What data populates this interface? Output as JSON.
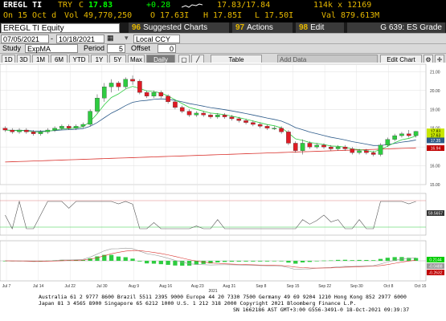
{
  "ticker": {
    "symbol": "EREGL TI",
    "currency": "TRY",
    "c_label": "C",
    "last_price": "17.83",
    "change": "+0.28",
    "bid_ask": "17.83/17.84",
    "size": "114k x 12169",
    "on_label": "On",
    "date_label": "15 Oct d",
    "vol_label": "Vol",
    "volume": "49,770,250",
    "o_label": "O",
    "open": "17.63I",
    "h_label": "H",
    "high": "17.85I",
    "l_label": "L",
    "low": "17.50I",
    "val_label": "Val",
    "value": "879.613M"
  },
  "toolbar": {
    "security": "EREGL TI Equity",
    "btn_suggested": {
      "num": "96",
      "label": "Suggested Charts"
    },
    "btn_actions": {
      "num": "97",
      "label": "Actions"
    },
    "btn_edit": {
      "num": "98",
      "label": "Edit"
    },
    "chart_id": "G 639: ES Grade"
  },
  "range": {
    "start": "07/05/2021",
    "end": "10/18/2021",
    "currency": "Local CCY"
  },
  "study": {
    "label": "Study",
    "value": "ExpMA",
    "period_label": "Period",
    "period": "5",
    "offset_label": "Offset",
    "offset": "0"
  },
  "tabs": [
    "1D",
    "3D",
    "1M",
    "6M",
    "YTD",
    "1Y",
    "5Y",
    "Max"
  ],
  "period_select": "Daily",
  "table_label": "Table",
  "add_data_placeholder": "Add Data",
  "edit_chart_label": "Edit Chart",
  "chart_data": {
    "type": "candlestick",
    "y_ticks": [
      "21.00",
      "20.00",
      "19.00",
      "18.00",
      "17.00",
      "16.00",
      "15.00"
    ],
    "x_labels": [
      "Jul 7",
      "Jul 14",
      "Jul 22",
      "Jul 30",
      "Aug 9",
      "Aug 16",
      "Aug 23",
      "Aug 31",
      "Sep 8",
      "Sep 15",
      "Sep 22",
      "Sep 30",
      "Oct 8",
      "Oct 15"
    ],
    "x_year": "2021",
    "ylim": [
      15,
      21.4
    ],
    "badges": [
      {
        "text": "17.83",
        "value": 17.83,
        "color": "#c8e600"
      },
      {
        "text": "17.63",
        "value": 17.63,
        "color": "#c8e600"
      },
      {
        "text": "17.35",
        "value": 17.35,
        "color": "#2d5b8a"
      },
      {
        "text": "16.94",
        "value": 16.94,
        "color": "#c00000"
      }
    ],
    "osc_badge": {
      "text": "59.5657",
      "value": 59.5657
    },
    "macd_badges": [
      {
        "text": "0.2144",
        "color": "#00cc00",
        "value": 0.2144
      },
      {
        "text": "-0.0488",
        "color": "#999999",
        "value": -0.0488
      },
      {
        "text": "-0.2632",
        "color": "#c00000",
        "value": -0.2632
      }
    ],
    "candles": [
      [
        18.0,
        18.1,
        17.8,
        17.9
      ],
      [
        17.9,
        18.0,
        17.7,
        17.8
      ],
      [
        17.8,
        18.0,
        17.7,
        17.9
      ],
      [
        17.9,
        18.0,
        17.7,
        17.8
      ],
      [
        17.8,
        17.9,
        17.6,
        17.7
      ],
      [
        17.7,
        17.9,
        17.6,
        17.8
      ],
      [
        17.8,
        18.0,
        17.7,
        17.9
      ],
      [
        17.9,
        18.1,
        17.8,
        18.0
      ],
      [
        18.0,
        18.2,
        17.9,
        18.1
      ],
      [
        18.1,
        18.2,
        17.9,
        18.0
      ],
      [
        18.0,
        18.2,
        17.9,
        18.1
      ],
      [
        18.1,
        18.3,
        18.0,
        18.2
      ],
      [
        18.2,
        19.0,
        18.1,
        18.9
      ],
      [
        18.9,
        19.8,
        18.8,
        19.6
      ],
      [
        19.6,
        20.4,
        19.4,
        20.2
      ],
      [
        20.2,
        20.6,
        19.9,
        20.4
      ],
      [
        20.4,
        20.5,
        20.0,
        20.2
      ],
      [
        20.2,
        20.7,
        20.1,
        20.6
      ],
      [
        20.6,
        20.8,
        20.3,
        20.5
      ],
      [
        20.5,
        20.6,
        19.8,
        19.9
      ],
      [
        19.9,
        20.0,
        19.6,
        19.7
      ],
      [
        19.7,
        20.0,
        19.6,
        19.9
      ],
      [
        19.9,
        20.0,
        19.6,
        19.7
      ],
      [
        19.7,
        19.8,
        19.3,
        19.4
      ],
      [
        19.4,
        19.5,
        19.0,
        19.1
      ],
      [
        19.1,
        19.2,
        18.8,
        18.9
      ],
      [
        18.9,
        19.0,
        18.6,
        18.7
      ],
      [
        18.7,
        18.9,
        18.6,
        18.8
      ],
      [
        18.8,
        18.9,
        18.6,
        18.7
      ],
      [
        18.7,
        18.8,
        18.5,
        18.6
      ],
      [
        18.6,
        18.8,
        18.5,
        18.7
      ],
      [
        18.7,
        18.8,
        18.5,
        18.6
      ],
      [
        18.6,
        18.7,
        18.4,
        18.5
      ],
      [
        18.5,
        18.6,
        18.3,
        18.4
      ],
      [
        18.4,
        18.5,
        18.2,
        18.3
      ],
      [
        18.3,
        18.4,
        18.1,
        18.2
      ],
      [
        18.2,
        18.3,
        18.0,
        18.1
      ],
      [
        18.1,
        18.2,
        17.9,
        18.0
      ],
      [
        18.0,
        18.1,
        17.9,
        18.0
      ],
      [
        18.0,
        18.1,
        17.7,
        17.8
      ],
      [
        17.8,
        17.9,
        17.1,
        17.2
      ],
      [
        17.2,
        17.3,
        16.7,
        16.8
      ],
      [
        16.8,
        17.4,
        16.6,
        17.2
      ],
      [
        17.2,
        17.3,
        16.9,
        17.0
      ],
      [
        17.0,
        17.2,
        16.9,
        17.1
      ],
      [
        17.1,
        17.2,
        16.9,
        17.0
      ],
      [
        17.0,
        17.1,
        16.8,
        16.9
      ],
      [
        16.9,
        17.1,
        16.8,
        17.0
      ],
      [
        17.0,
        17.1,
        16.8,
        16.9
      ],
      [
        16.9,
        17.0,
        16.6,
        16.7
      ],
      [
        16.7,
        16.9,
        16.6,
        16.8
      ],
      [
        16.8,
        16.9,
        16.6,
        16.7
      ],
      [
        16.7,
        16.8,
        16.5,
        16.6
      ],
      [
        16.6,
        17.2,
        16.5,
        17.1
      ],
      [
        17.1,
        17.5,
        17.0,
        17.4
      ],
      [
        17.4,
        17.7,
        17.3,
        17.6
      ],
      [
        17.6,
        17.8,
        17.5,
        17.7
      ],
      [
        17.7,
        17.9,
        17.5,
        17.6
      ],
      [
        17.6,
        17.85,
        17.5,
        17.83
      ]
    ]
  },
  "footer": {
    "line1": "Australia 61 2 9777 8600 Brazil 5511 2395 9000 Europe 44 20 7330 7500 Germany 49 69 9204 1210 Hong Kong 852 2977 6000",
    "line2": "Japan 81 3 4565 8900        Singapore 65 6212 1000        U.S. 1 212 318 2000        Copyright 2021 Bloomberg Finance L.P.",
    "line3": "SN 1662186 AST  GMT+3:00 G556-3491-0 18-Oct-2021 09:39:37"
  }
}
